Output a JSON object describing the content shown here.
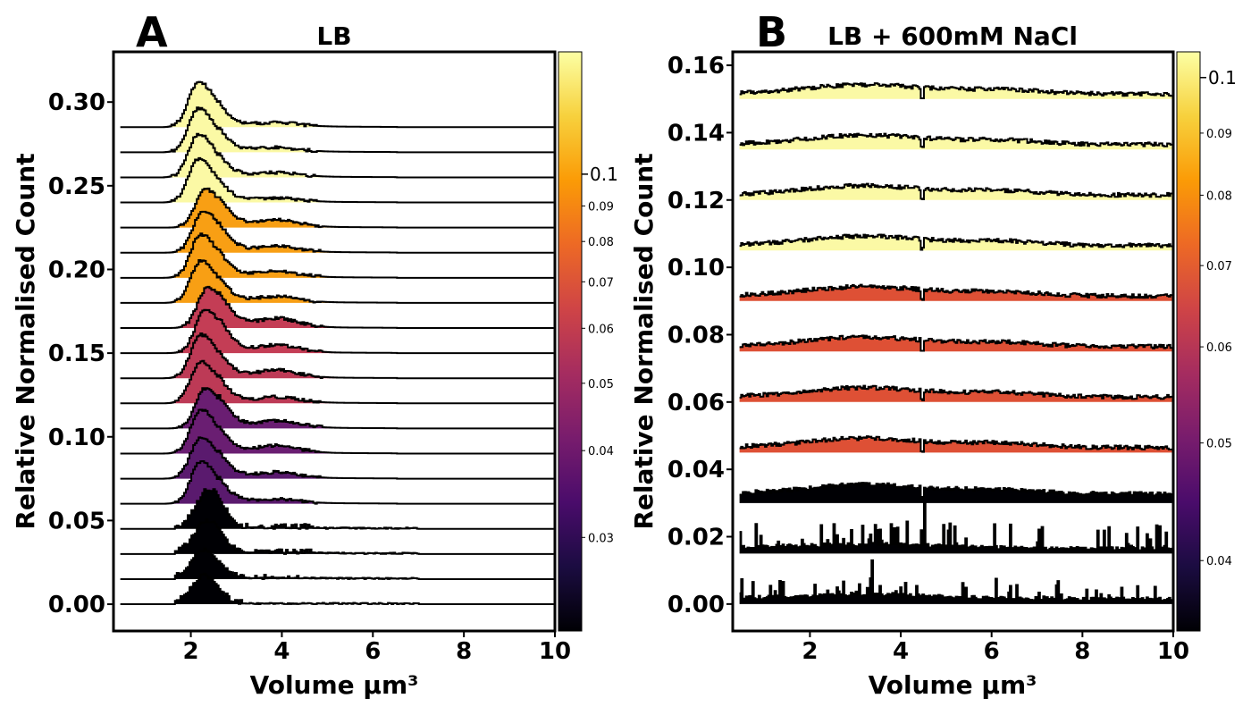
{
  "chart_data": [
    {
      "type": "area",
      "panel_letter": "A",
      "title": "LB",
      "xlabel": "Volume µm³",
      "ylabel": "Relative Normalised Count",
      "xlim": [
        0.3,
        10
      ],
      "ylim": [
        -0.016,
        0.33
      ],
      "x_ticks": [
        "2",
        "4",
        "6",
        "8",
        "10"
      ],
      "y_ticks": [
        "0.00",
        "0.05",
        "0.10",
        "0.15",
        "0.20",
        "0.25",
        "0.30"
      ],
      "grid": false,
      "colorbar": {
        "range": [
          0.022,
          0.15
        ],
        "major_labels": [
          "0.1"
        ],
        "minor_labels": [
          "0.03",
          "0.04",
          "0.05",
          "0.06",
          "0.07",
          "0.08",
          "0.09"
        ]
      },
      "series": [
        {
          "offset": 0.0,
          "peak_x": 2.3,
          "peak_height": 0.017,
          "tail_height": 0.0,
          "shape": "narrow",
          "color": "#000004",
          "y_start": 0.0
        },
        {
          "offset": 0.015,
          "peak_x": 2.3,
          "peak_height": 0.018,
          "tail_height": 0.0005,
          "shape": "narrow",
          "color": "#000004",
          "y_start": 0.015
        },
        {
          "offset": 0.03,
          "peak_x": 2.35,
          "peak_height": 0.02,
          "tail_height": 0.001,
          "shape": "narrow",
          "color": "#000004",
          "y_start": 0.03
        },
        {
          "offset": 0.045,
          "peak_x": 2.4,
          "peak_height": 0.024,
          "tail_height": 0.001,
          "shape": "narrow",
          "color": "#000004",
          "y_start": 0.045
        },
        {
          "offset": 0.06,
          "peak_x": 2.2,
          "peak_height": 0.025,
          "tail_height": 0.002,
          "shape": "wide",
          "color": "#5a1a6e",
          "y_start": 0.06
        },
        {
          "offset": 0.075,
          "peak_x": 2.2,
          "peak_height": 0.025,
          "tail_height": 0.003,
          "shape": "wide",
          "color": "#5a1a6e",
          "y_start": 0.075
        },
        {
          "offset": 0.09,
          "peak_x": 2.2,
          "peak_height": 0.026,
          "tail_height": 0.004,
          "shape": "wide",
          "color": "#6a1e72",
          "y_start": 0.09
        },
        {
          "offset": 0.105,
          "peak_x": 2.3,
          "peak_height": 0.024,
          "tail_height": 0.004,
          "shape": "wide",
          "color": "#6a1e72",
          "y_start": 0.105
        },
        {
          "offset": 0.12,
          "peak_x": 2.2,
          "peak_height": 0.025,
          "tail_height": 0.003,
          "shape": "wide",
          "color": "#bd3a56",
          "y_start": 0.12
        },
        {
          "offset": 0.135,
          "peak_x": 2.2,
          "peak_height": 0.026,
          "tail_height": 0.004,
          "shape": "wide",
          "color": "#bd3a56",
          "y_start": 0.135
        },
        {
          "offset": 0.15,
          "peak_x": 2.3,
          "peak_height": 0.026,
          "tail_height": 0.004,
          "shape": "wide",
          "color": "#c43d55",
          "y_start": 0.15
        },
        {
          "offset": 0.165,
          "peak_x": 2.35,
          "peak_height": 0.024,
          "tail_height": 0.005,
          "shape": "wide",
          "color": "#c43d55",
          "y_start": 0.165
        },
        {
          "offset": 0.18,
          "peak_x": 2.2,
          "peak_height": 0.025,
          "tail_height": 0.003,
          "shape": "wide",
          "color": "#f89f14",
          "y_start": 0.18
        },
        {
          "offset": 0.195,
          "peak_x": 2.2,
          "peak_height": 0.026,
          "tail_height": 0.003,
          "shape": "wide",
          "color": "#f89f14",
          "y_start": 0.195
        },
        {
          "offset": 0.21,
          "peak_x": 2.25,
          "peak_height": 0.025,
          "tail_height": 0.003,
          "shape": "wide",
          "color": "#f89f14",
          "y_start": 0.21
        },
        {
          "offset": 0.225,
          "peak_x": 2.3,
          "peak_height": 0.023,
          "tail_height": 0.004,
          "shape": "wide",
          "color": "#f89f14",
          "y_start": 0.225
        },
        {
          "offset": 0.24,
          "peak_x": 2.15,
          "peak_height": 0.026,
          "tail_height": 0.002,
          "shape": "wide",
          "color": "#fbf9a5",
          "y_start": 0.24
        },
        {
          "offset": 0.255,
          "peak_x": 2.15,
          "peak_height": 0.026,
          "tail_height": 0.002,
          "shape": "wide",
          "color": "#fbf9a5",
          "y_start": 0.255
        },
        {
          "offset": 0.27,
          "peak_x": 2.15,
          "peak_height": 0.026,
          "tail_height": 0.002,
          "shape": "wide",
          "color": "#fbf9a5",
          "y_start": 0.27
        },
        {
          "offset": 0.285,
          "peak_x": 2.15,
          "peak_height": 0.027,
          "tail_height": 0.002,
          "shape": "wide",
          "color": "#fbf9a5",
          "y_start": 0.285
        }
      ]
    },
    {
      "type": "area",
      "panel_letter": "B",
      "title": "LB + 600mM NaCl",
      "xlabel": "Volume µm³",
      "ylabel": "Relative Normalised Count",
      "xlim": [
        0.3,
        10
      ],
      "ylim": [
        -0.008,
        0.164
      ],
      "x_ticks": [
        "2",
        "4",
        "6",
        "8",
        "10"
      ],
      "y_ticks": [
        "0.00",
        "0.02",
        "0.04",
        "0.06",
        "0.08",
        "0.10",
        "0.12",
        "0.14",
        "0.16"
      ],
      "grid": false,
      "colorbar": {
        "range": [
          0.035,
          0.105
        ],
        "major_labels": [
          "0.1"
        ],
        "minor_labels": [
          "0.04",
          "0.05",
          "0.06",
          "0.07",
          "0.08",
          "0.09"
        ]
      },
      "series": [
        {
          "offset": 0.0,
          "style": "spiky",
          "amp": 0.005,
          "color": "#000004",
          "y_start": 0.0
        },
        {
          "offset": 0.015,
          "style": "spiky",
          "amp": 0.006,
          "color": "#000004",
          "y_start": 0.015
        },
        {
          "offset": 0.03,
          "style": "broad",
          "amp": 0.005,
          "color": "#000004",
          "y_start": 0.03
        },
        {
          "offset": 0.045,
          "style": "broad",
          "amp": 0.005,
          "color": "#de5035",
          "y_start": 0.045
        },
        {
          "offset": 0.06,
          "style": "broad",
          "amp": 0.005,
          "color": "#de5035",
          "y_start": 0.06
        },
        {
          "offset": 0.075,
          "style": "broad",
          "amp": 0.005,
          "color": "#de5035",
          "y_start": 0.075
        },
        {
          "offset": 0.09,
          "style": "broad",
          "amp": 0.005,
          "color": "#de5035",
          "y_start": 0.09
        },
        {
          "offset": 0.105,
          "style": "broad",
          "amp": 0.005,
          "color": "#fbf9a5",
          "y_start": 0.105
        },
        {
          "offset": 0.12,
          "style": "broad",
          "amp": 0.005,
          "color": "#fbf9a5",
          "y_start": 0.12
        },
        {
          "offset": 0.135,
          "style": "broad",
          "amp": 0.005,
          "color": "#fbf9a5",
          "y_start": 0.135
        },
        {
          "offset": 0.15,
          "style": "broad",
          "amp": 0.005,
          "color": "#fbf9a5",
          "y_start": 0.15
        }
      ]
    }
  ]
}
